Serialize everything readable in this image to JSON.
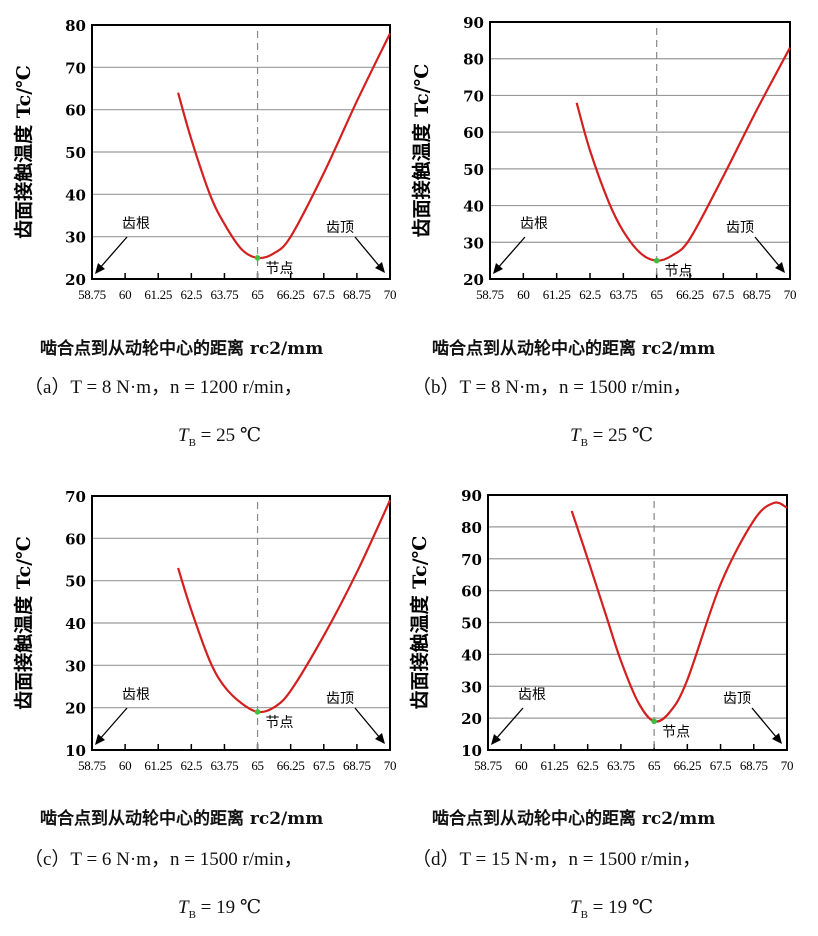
{
  "colors": {
    "curve": "#d41f1f",
    "node_point": "#3fbf3f",
    "grid": "#9a9a9a",
    "dash": "#888888"
  },
  "chart_data": [
    {
      "id": "a",
      "type": "line",
      "ylabel": "齿面接触温度 Tc/℃",
      "xlabel": "啮合点到从动轮中心的距离 rc2/mm",
      "xlim": [
        58.75,
        70
      ],
      "ylim": [
        20,
        80
      ],
      "yticks": [
        20,
        30,
        40,
        50,
        60,
        70,
        80
      ],
      "xticks": [
        "58.75",
        "60",
        "61.25",
        "62.5",
        "63.75",
        "65",
        "66.25",
        "67.5",
        "68.75",
        "70"
      ],
      "x": [
        62.0,
        62.5,
        63.2,
        63.75,
        64.4,
        65,
        65.6,
        66.25,
        67.5,
        68.75,
        70
      ],
      "y": [
        64,
        53,
        40,
        33,
        27,
        25,
        26,
        30,
        45,
        62,
        78
      ],
      "annotations": {
        "root": "齿根",
        "tip": "齿顶",
        "node": "节点"
      },
      "node_x": 65,
      "node_y": 25,
      "caption": {
        "line1": "（a）T = 8 N·m，n = 1200 r/min，",
        "T": "T",
        "sub": "B",
        "line2": " = 25 ℃"
      }
    },
    {
      "id": "b",
      "type": "line",
      "ylabel": "齿面接触温度 Tc/℃",
      "xlabel": "啮合点到从动轮中心的距离 rc2/mm",
      "xlim": [
        58.75,
        70
      ],
      "ylim": [
        20,
        90
      ],
      "yticks": [
        20,
        30,
        40,
        50,
        60,
        70,
        80,
        90
      ],
      "xticks": [
        "58.75",
        "60",
        "61.25",
        "62.5",
        "63.75",
        "65",
        "66.25",
        "67.5",
        "68.75",
        "70"
      ],
      "x": [
        62.0,
        62.5,
        63.2,
        63.75,
        64.4,
        65,
        65.6,
        66.25,
        67.5,
        68.75,
        70
      ],
      "y": [
        68,
        55,
        41,
        33,
        27,
        25,
        26.5,
        31,
        48,
        66,
        83
      ],
      "annotations": {
        "root": "齿根",
        "tip": "齿顶",
        "node": "节点"
      },
      "node_x": 65,
      "node_y": 25,
      "caption": {
        "line1": "（b）T = 8 N·m，n = 1500 r/min，",
        "T": "T",
        "sub": "B",
        "line2": " = 25 ℃"
      }
    },
    {
      "id": "c",
      "type": "line",
      "ylabel": "齿面接触温度 Tc/℃",
      "xlabel": "啮合点到从动轮中心的距离 rc2/mm",
      "xlim": [
        58.75,
        70
      ],
      "ylim": [
        10,
        70
      ],
      "yticks": [
        10,
        20,
        30,
        40,
        50,
        60,
        70
      ],
      "xticks": [
        "58.75",
        "60",
        "61.25",
        "62.5",
        "63.75",
        "65",
        "66.25",
        "67.5",
        "68.75",
        "70"
      ],
      "x": [
        62.0,
        62.5,
        63.2,
        63.75,
        64.4,
        65,
        65.6,
        66.25,
        67.5,
        68.75,
        70
      ],
      "y": [
        53,
        43,
        31,
        25,
        21,
        19,
        20,
        24,
        37,
        52,
        69
      ],
      "annotations": {
        "root": "齿根",
        "tip": "齿顶",
        "node": "节点"
      },
      "node_x": 65,
      "node_y": 19,
      "caption": {
        "line1": "（c）T = 6 N·m，n = 1500 r/min，",
        "T": "T",
        "sub": "B",
        "line2": " = 19 ℃"
      }
    },
    {
      "id": "d",
      "type": "line",
      "ylabel": "齿面接触温度 Tc/℃",
      "xlabel": "啮合点到从动轮中心的距离 rc2/mm",
      "xlim": [
        58.75,
        70
      ],
      "ylim": [
        10,
        90
      ],
      "yticks": [
        10,
        20,
        30,
        40,
        50,
        60,
        70,
        80,
        90
      ],
      "xticks": [
        "58.75",
        "60",
        "61.25",
        "62.5",
        "63.75",
        "65",
        "66.25",
        "67.5",
        "68.75",
        "70"
      ],
      "x": [
        61.9,
        62.5,
        63.2,
        63.75,
        64.4,
        65,
        65.6,
        66.25,
        67.5,
        68.75,
        69.5,
        70
      ],
      "y": [
        85,
        70,
        52,
        38,
        25,
        19,
        22,
        32,
        62,
        82,
        87.5,
        86
      ],
      "annotations": {
        "root": "齿根",
        "tip": "齿顶",
        "node": "节点"
      },
      "node_x": 65,
      "node_y": 19,
      "caption": {
        "line1": "（d）T = 15 N·m，n = 1500 r/min，",
        "T": "T",
        "sub": "B",
        "line2": " = 19 ℃"
      }
    }
  ]
}
